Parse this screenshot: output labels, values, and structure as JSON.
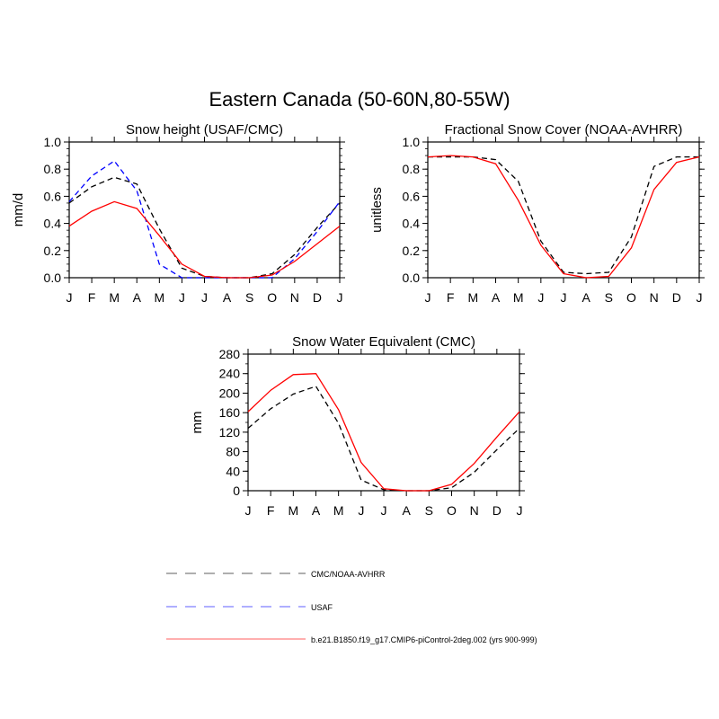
{
  "figure": {
    "title": "Eastern Canada (50-60N,80-55W)"
  },
  "legend": [
    {
      "label": "CMC/NOAA-AVHRR",
      "color": "#000000",
      "dash": "dashed"
    },
    {
      "label": "USAF",
      "color": "#0000ff",
      "dash": "dashed"
    },
    {
      "label": "b.e21.B1850.f19_g17.CMIP6-piControl-2deg.002 (yrs 900-999)",
      "color": "#ff0000",
      "dash": "solid"
    }
  ],
  "chart_data": [
    {
      "type": "line",
      "title": "Snow height (USAF/CMC)",
      "ylabel": "mm/d",
      "xlabel": "",
      "categories": [
        "J",
        "F",
        "M",
        "A",
        "M",
        "J",
        "J",
        "A",
        "S",
        "O",
        "N",
        "D",
        "J"
      ],
      "ylim": [
        0,
        1.0
      ],
      "yticks": [
        "0.0",
        "0.2",
        "0.4",
        "0.6",
        "0.8",
        "1.0"
      ],
      "grid": false,
      "series": [
        {
          "name": "CMC/NOAA-AVHRR",
          "color": "#000000",
          "dash": "dashed",
          "values": [
            0.55,
            0.67,
            0.74,
            0.69,
            0.36,
            0.07,
            0.01,
            0.0,
            0.0,
            0.03,
            0.17,
            0.37,
            0.55
          ]
        },
        {
          "name": "USAF",
          "color": "#0000ff",
          "dash": "dashed",
          "values": [
            0.56,
            0.75,
            0.86,
            0.64,
            0.1,
            0.0,
            0.0,
            0.0,
            0.0,
            0.0,
            0.14,
            0.34,
            0.56
          ]
        },
        {
          "name": "b.e21.B1850.f19_g17.CMIP6-piControl-2deg.002 (yrs 900-999)",
          "color": "#ff0000",
          "dash": "solid",
          "values": [
            0.38,
            0.49,
            0.56,
            0.51,
            0.31,
            0.1,
            0.01,
            0.0,
            0.0,
            0.02,
            0.12,
            0.25,
            0.38
          ]
        }
      ]
    },
    {
      "type": "line",
      "title": "Fractional Snow Cover (NOAA-AVHRR)",
      "ylabel": "unitless",
      "xlabel": "",
      "categories": [
        "J",
        "F",
        "M",
        "A",
        "M",
        "J",
        "J",
        "A",
        "S",
        "O",
        "N",
        "D",
        "J"
      ],
      "ylim": [
        0,
        1.0
      ],
      "yticks": [
        "0.0",
        "0.2",
        "0.4",
        "0.6",
        "0.8",
        "1.0"
      ],
      "grid": false,
      "series": [
        {
          "name": "CMC/NOAA-AVHRR",
          "color": "#000000",
          "dash": "dashed",
          "values": [
            0.89,
            0.89,
            0.89,
            0.87,
            0.71,
            0.27,
            0.04,
            0.03,
            0.04,
            0.3,
            0.82,
            0.89,
            0.89
          ]
        },
        {
          "name": "b.e21.B1850.f19_g17.CMIP6-piControl-2deg.002 (yrs 900-999)",
          "color": "#ff0000",
          "dash": "solid",
          "values": [
            0.89,
            0.9,
            0.89,
            0.84,
            0.57,
            0.24,
            0.03,
            0.0,
            0.01,
            0.22,
            0.65,
            0.85,
            0.89
          ]
        }
      ]
    },
    {
      "type": "line",
      "title": "Snow Water Equivalent (CMC)",
      "ylabel": "mm",
      "xlabel": "",
      "categories": [
        "J",
        "F",
        "M",
        "A",
        "M",
        "J",
        "J",
        "A",
        "S",
        "O",
        "N",
        "D",
        "J"
      ],
      "ylim": [
        0,
        280
      ],
      "yticks": [
        "0",
        "40",
        "80",
        "120",
        "160",
        "200",
        "240",
        "280"
      ],
      "grid": false,
      "series": [
        {
          "name": "CMC/NOAA-AVHRR",
          "color": "#000000",
          "dash": "dashed",
          "values": [
            128,
            168,
            198,
            214,
            138,
            22,
            2,
            0,
            0,
            6,
            38,
            84,
            128
          ]
        },
        {
          "name": "b.e21.B1850.f19_g17.CMIP6-piControl-2deg.002 (yrs 900-999)",
          "color": "#ff0000",
          "dash": "solid",
          "values": [
            162,
            206,
            238,
            240,
            166,
            58,
            4,
            0,
            0,
            13,
            56,
            110,
            162
          ]
        }
      ]
    }
  ]
}
